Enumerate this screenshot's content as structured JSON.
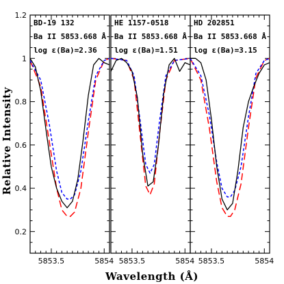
{
  "chart_data": {
    "type": "line",
    "ylabel": "Relative Intensity",
    "xlabel": "Wavelength (Å)",
    "ylim": [
      0.1,
      1.2
    ],
    "yticks": [
      0.2,
      0.4,
      0.6,
      0.8,
      1,
      1.2
    ],
    "ytick_labels": [
      "0.2",
      "0.4",
      "0.6",
      "0.8",
      "1",
      "1.2"
    ],
    "xlim": [
      5853.3,
      5854.05
    ],
    "xticks": [
      5853.5,
      5854
    ],
    "xtick_labels": [
      "5853.5",
      "5854"
    ],
    "colors": {
      "observed": "#000000",
      "synth_low": "#ff0000",
      "synth_high": "#0000ff"
    },
    "panels": [
      {
        "annotations": [
          "BD-19 132",
          "Ba II 5853.668 Å",
          "log ε(Ba)=2.36"
        ],
        "observed": {
          "x": [
            5853.3,
            5853.35,
            5853.4,
            5853.45,
            5853.5,
            5853.55,
            5853.6,
            5853.65,
            5853.7,
            5853.75,
            5853.8,
            5853.85,
            5853.9,
            5853.95,
            5854.0,
            5854.05
          ],
          "y": [
            1.0,
            0.96,
            0.85,
            0.67,
            0.5,
            0.4,
            0.34,
            0.31,
            0.34,
            0.44,
            0.62,
            0.83,
            0.97,
            1.0,
            0.98,
            0.97
          ]
        },
        "synthetic_low": {
          "x": [
            5853.3,
            5853.4,
            5853.48,
            5853.55,
            5853.6,
            5853.65,
            5853.68,
            5853.72,
            5853.78,
            5853.85,
            5853.92,
            5854.0,
            5854.05
          ],
          "y": [
            0.99,
            0.87,
            0.62,
            0.4,
            0.3,
            0.27,
            0.27,
            0.29,
            0.4,
            0.66,
            0.9,
            0.99,
            1.0
          ]
        },
        "synthetic_high": {
          "x": [
            5853.3,
            5853.4,
            5853.48,
            5853.55,
            5853.6,
            5853.65,
            5853.68,
            5853.72,
            5853.78,
            5853.85,
            5853.92,
            5854.0,
            5854.05
          ],
          "y": [
            0.99,
            0.9,
            0.7,
            0.48,
            0.38,
            0.35,
            0.35,
            0.37,
            0.48,
            0.71,
            0.92,
            0.99,
            1.0
          ]
        }
      },
      {
        "annotations": [
          "HE 1157-0518",
          "Ba II 5853.668 Å",
          "log ε(Ba)=1.51"
        ],
        "observed": {
          "x": [
            5853.3,
            5853.35,
            5853.4,
            5853.45,
            5853.5,
            5853.55,
            5853.6,
            5853.65,
            5853.7,
            5853.75,
            5853.8,
            5853.85,
            5853.9,
            5853.95,
            5854.0,
            5854.05
          ],
          "y": [
            0.94,
            0.99,
            1.0,
            0.98,
            0.94,
            0.82,
            0.56,
            0.41,
            0.43,
            0.6,
            0.84,
            0.97,
            1.0,
            0.94,
            0.98,
            0.97
          ]
        },
        "synthetic_low": {
          "x": [
            5853.3,
            5853.45,
            5853.52,
            5853.58,
            5853.63,
            5853.67,
            5853.71,
            5853.76,
            5853.82,
            5853.9,
            5854.05
          ],
          "y": [
            1.0,
            0.99,
            0.9,
            0.63,
            0.41,
            0.37,
            0.42,
            0.65,
            0.9,
            0.99,
            1.0
          ]
        },
        "synthetic_high": {
          "x": [
            5853.3,
            5853.45,
            5853.52,
            5853.58,
            5853.63,
            5853.67,
            5853.71,
            5853.76,
            5853.82,
            5853.9,
            5854.05
          ],
          "y": [
            1.0,
            0.99,
            0.92,
            0.7,
            0.51,
            0.47,
            0.51,
            0.71,
            0.92,
            0.99,
            1.0
          ]
        }
      },
      {
        "annotations": [
          "HD 202851",
          "Ba II 5853.668 Å",
          "log ε(Ba)=3.15"
        ],
        "observed": {
          "x": [
            5853.3,
            5853.35,
            5853.4,
            5853.45,
            5853.5,
            5853.55,
            5853.6,
            5853.65,
            5853.7,
            5853.75,
            5853.8,
            5853.85,
            5853.9,
            5853.95,
            5854.0,
            5854.05
          ],
          "y": [
            1.0,
            1.0,
            0.98,
            0.9,
            0.72,
            0.5,
            0.35,
            0.3,
            0.33,
            0.48,
            0.68,
            0.8,
            0.87,
            0.93,
            0.97,
            0.98
          ]
        },
        "synthetic_low": {
          "x": [
            5853.3,
            5853.4,
            5853.48,
            5853.55,
            5853.6,
            5853.65,
            5853.68,
            5853.72,
            5853.78,
            5853.85,
            5853.92,
            5854.0,
            5854.05
          ],
          "y": [
            1.0,
            0.9,
            0.68,
            0.43,
            0.31,
            0.27,
            0.27,
            0.3,
            0.42,
            0.68,
            0.91,
            0.99,
            1.0
          ]
        },
        "synthetic_high": {
          "x": [
            5853.3,
            5853.4,
            5853.48,
            5853.55,
            5853.6,
            5853.65,
            5853.68,
            5853.72,
            5853.78,
            5853.85,
            5853.92,
            5854.0,
            5854.05
          ],
          "y": [
            1.0,
            0.92,
            0.74,
            0.52,
            0.4,
            0.36,
            0.36,
            0.39,
            0.5,
            0.73,
            0.93,
            0.99,
            1.0
          ]
        }
      }
    ]
  }
}
